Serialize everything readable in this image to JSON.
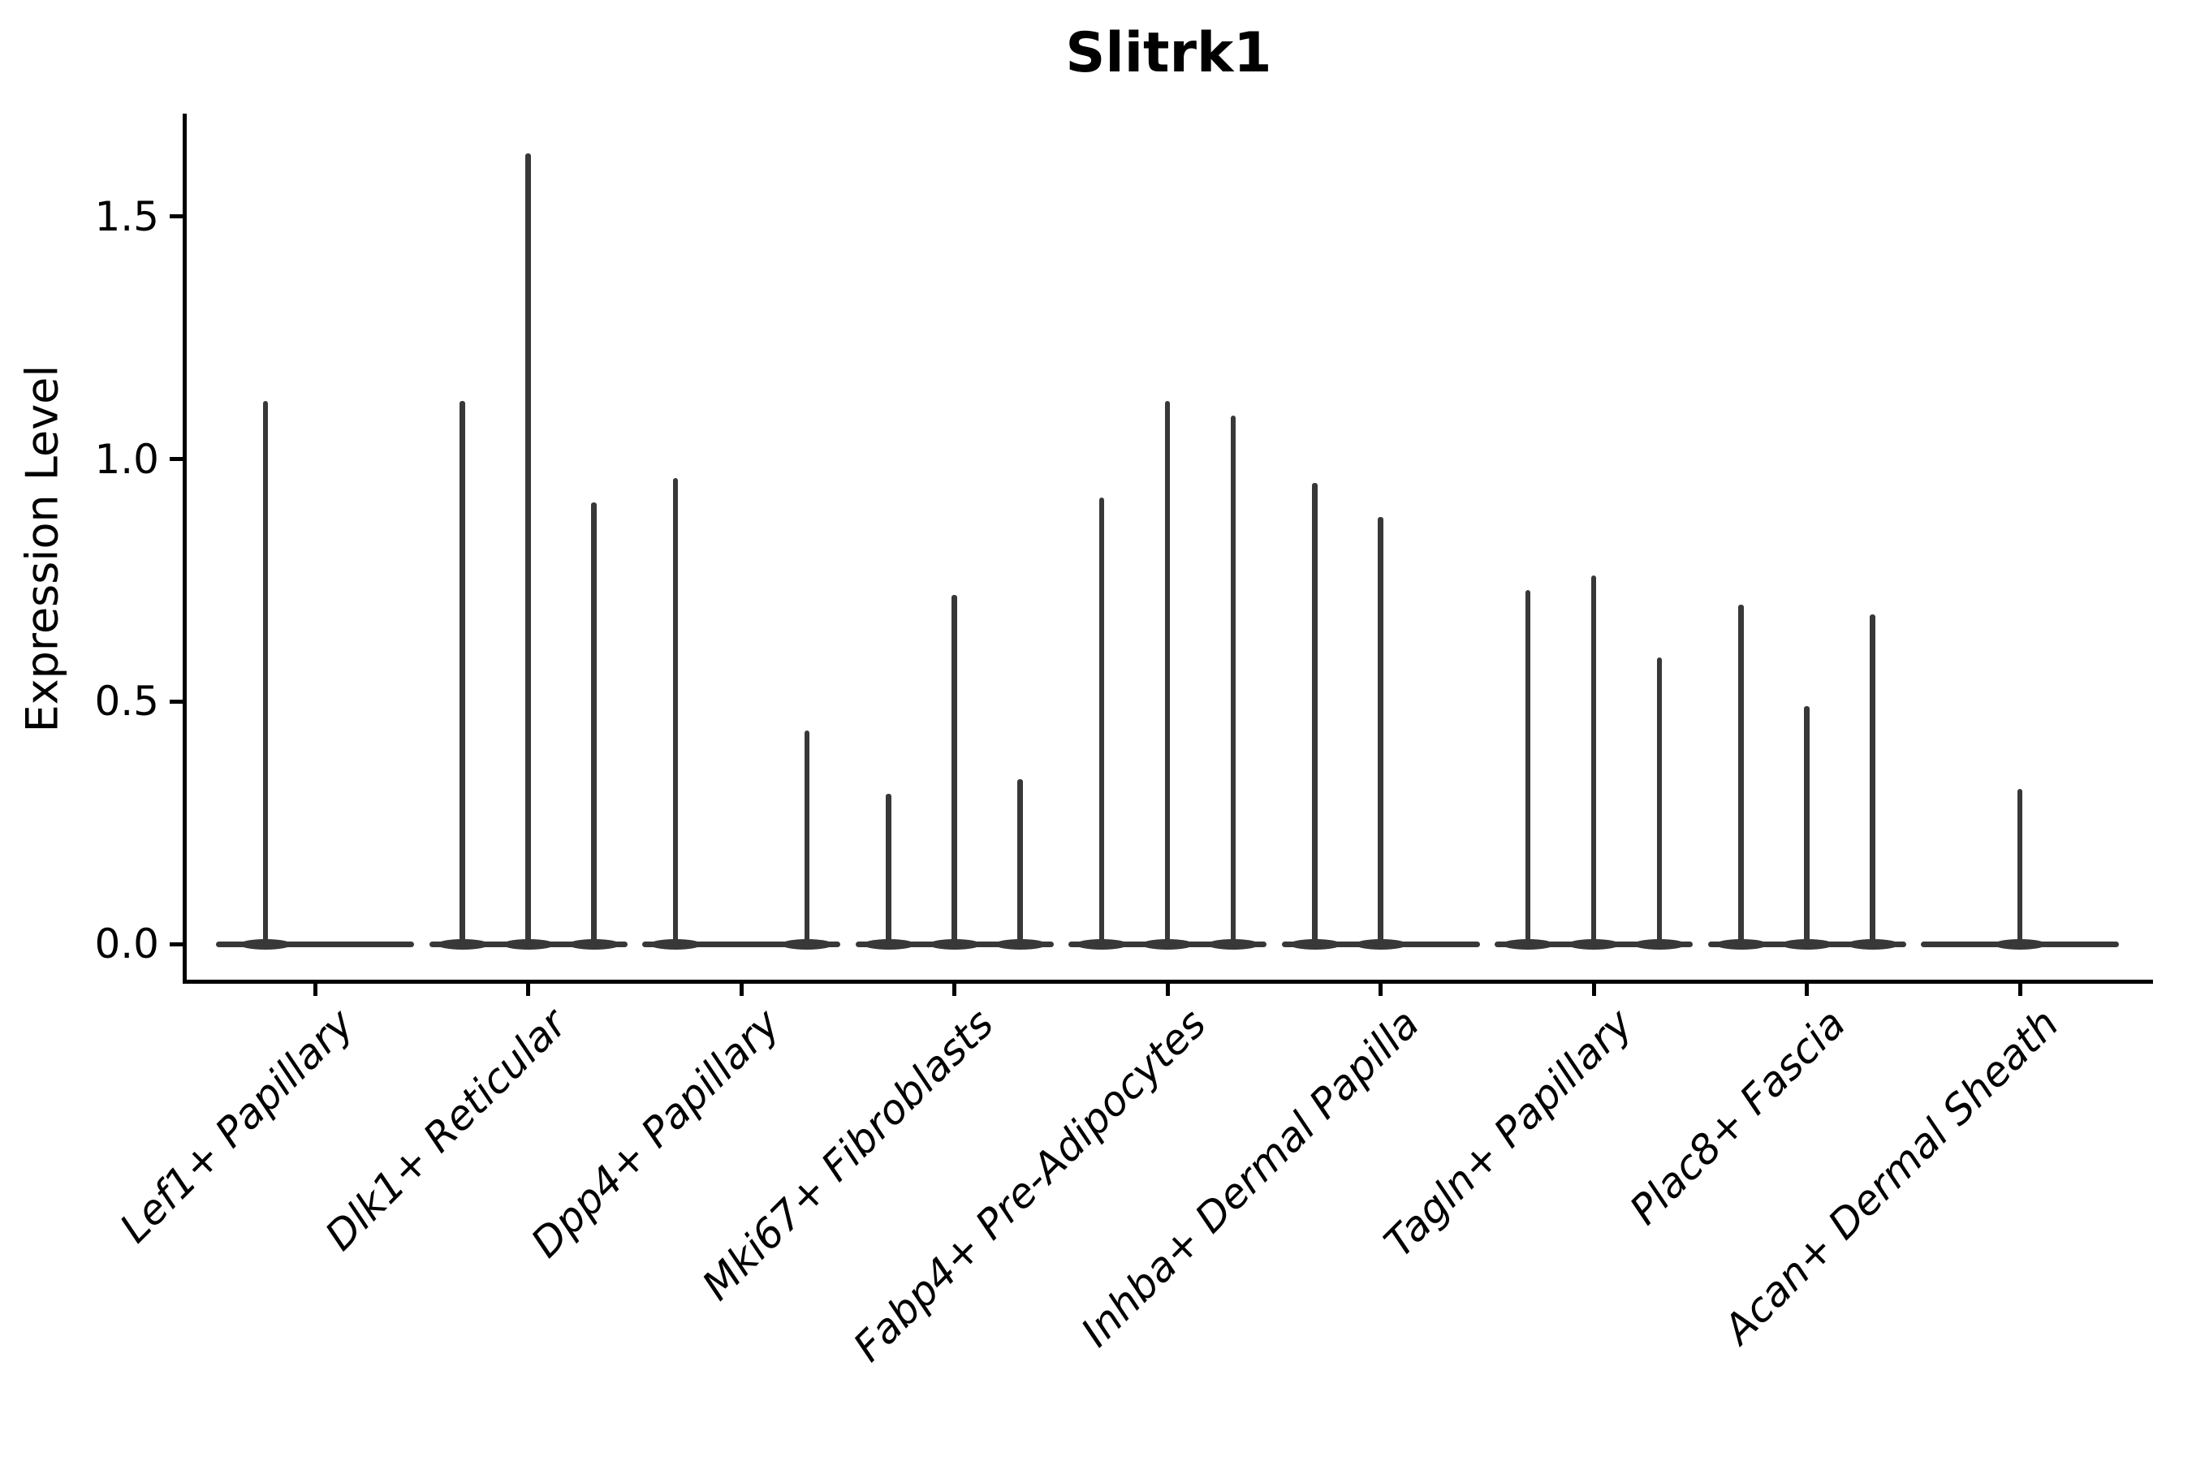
{
  "chart_data": {
    "type": "violin",
    "title": "Slitrk1",
    "ylabel": "Expression Level",
    "xlabel": "",
    "yticks": [
      "0.0",
      "0.5",
      "1.0",
      "1.5"
    ],
    "ytick_values": [
      0.0,
      0.5,
      1.0,
      1.5
    ],
    "ylim": [
      -0.073,
      1.711
    ],
    "grid": false,
    "legend": false,
    "categories": [
      "Lef1+ Papillary",
      "Dlk1+ Reticular",
      "Dpp4+ Papillary",
      "Mki67+ Fibroblasts",
      "Fabp4+ Pre-Adipocytes",
      "Inhba+ Dermal Papilla",
      "Tagln+ Papillary",
      "Plac8+ Fascia",
      "Acan+ Dermal Sheath"
    ],
    "groups": [
      {
        "category": "Lef1+ Papillary",
        "spikes": [
          {
            "offset": -61,
            "peak": 1.12
          }
        ]
      },
      {
        "category": "Dlk1+ Reticular",
        "spikes": [
          {
            "offset": -81,
            "peak": 1.12
          },
          {
            "offset": 0,
            "peak": 1.63
          },
          {
            "offset": 81,
            "peak": 0.91
          }
        ]
      },
      {
        "category": "Dpp4+ Papillary",
        "spikes": [
          {
            "offset": -81,
            "peak": 0.96
          },
          {
            "offset": 81,
            "peak": 0.44
          }
        ]
      },
      {
        "category": "Mki67+ Fibroblasts",
        "spikes": [
          {
            "offset": -81,
            "peak": 0.31
          },
          {
            "offset": 0,
            "peak": 0.72
          },
          {
            "offset": 81,
            "peak": 0.34
          }
        ]
      },
      {
        "category": "Fabp4+ Pre-Adipocytes",
        "spikes": [
          {
            "offset": -81,
            "peak": 0.92
          },
          {
            "offset": 0,
            "peak": 1.12
          },
          {
            "offset": 81,
            "peak": 1.09
          }
        ]
      },
      {
        "category": "Inhba+ Dermal Papilla",
        "spikes": [
          {
            "offset": -81,
            "peak": 0.95
          },
          {
            "offset": 0,
            "peak": 0.88
          }
        ]
      },
      {
        "category": "Tagln+ Papillary",
        "spikes": [
          {
            "offset": -81,
            "peak": 0.73
          },
          {
            "offset": 0,
            "peak": 0.76
          },
          {
            "offset": 81,
            "peak": 0.59
          }
        ]
      },
      {
        "category": "Plac8+ Fascia",
        "spikes": [
          {
            "offset": -81,
            "peak": 0.7
          },
          {
            "offset": 0,
            "peak": 0.49
          },
          {
            "offset": 81,
            "peak": 0.68
          }
        ]
      },
      {
        "category": "Acan+ Dermal Sheath",
        "spikes": [
          {
            "offset": 0,
            "peak": 0.32
          }
        ]
      }
    ],
    "colors": {
      "violin": "#383838",
      "axis": "#000000",
      "background": "#ffffff"
    }
  }
}
